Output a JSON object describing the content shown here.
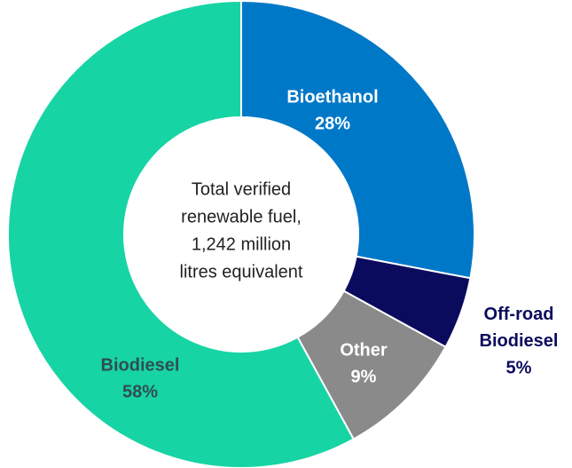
{
  "chart_data": {
    "type": "donut",
    "categories": [
      "Bioethanol",
      "Off-road Biodiesel",
      "Other",
      "Biodiesel"
    ],
    "values": [
      28,
      5,
      9,
      58
    ],
    "value_labels": [
      "28%",
      "5%",
      "9%",
      "58%"
    ],
    "colors": [
      "#0078c8",
      "#0b0b5e",
      "#8a8a8a",
      "#17d4a4"
    ],
    "center_text": [
      "Total verified",
      "renewable fuel,",
      "1,242 million",
      "litres equivalent"
    ]
  }
}
